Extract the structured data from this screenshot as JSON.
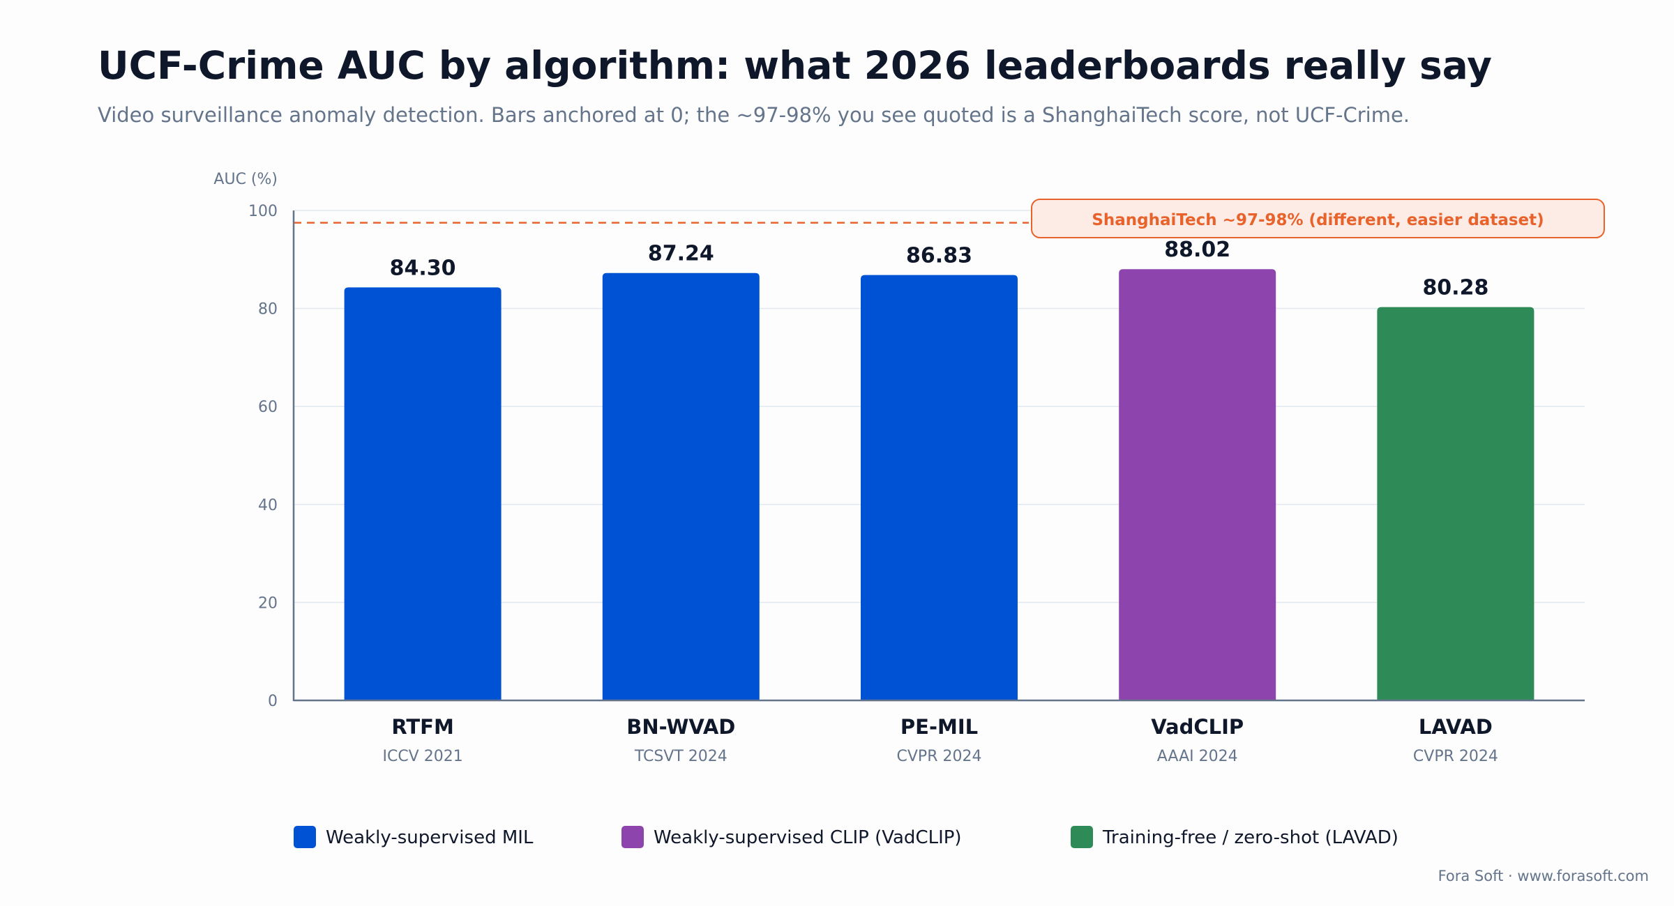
{
  "header": {
    "title": "UCF-Crime AUC by algorithm: what 2026 leaderboards really say",
    "subtitle": "Video surveillance anomaly detection. Bars anchored at 0; the ~97-98% you see quoted is a ShanghaiTech score, not UCF-Crime."
  },
  "footer": {
    "credit": "Fora Soft · www.forasoft.com"
  },
  "chart_data": {
    "type": "bar",
    "title": "UCF-Crime AUC by algorithm: what 2026 leaderboards really say",
    "ylabel": "AUC (%)",
    "xlabel": "",
    "ylim": [
      0,
      100
    ],
    "yticks": [
      0,
      20,
      40,
      60,
      80,
      100
    ],
    "grid": true,
    "legend_position": "bottom",
    "categories": [
      "RTFM",
      "BN-WVAD",
      "PE-MIL",
      "VadCLIP",
      "LAVAD"
    ],
    "venues": [
      "ICCV 2021",
      "TCSVT 2024",
      "CVPR 2024",
      "AAAI 2024",
      "CVPR 2024"
    ],
    "values": [
      84.3,
      87.24,
      86.83,
      88.02,
      80.28
    ],
    "value_labels": [
      "84.30",
      "87.24",
      "86.83",
      "88.02",
      "80.28"
    ],
    "groups": [
      "mil",
      "mil",
      "mil",
      "clip",
      "free"
    ],
    "legend": [
      {
        "key": "mil",
        "label": "Weakly-supervised MIL",
        "color": "#0052d4"
      },
      {
        "key": "clip",
        "label": "Weakly-supervised CLIP (VadCLIP)",
        "color": "#8e44ad"
      },
      {
        "key": "free",
        "label": "Training-free / zero-shot (LAVAD)",
        "color": "#2e8b57"
      }
    ],
    "reference_line": {
      "value": 97.5,
      "label": "ShanghaiTech ~97-98% (different, easier dataset)",
      "color": "#e8622c"
    },
    "colors": {
      "axis": "#64748b",
      "grid": "#e2e8f0",
      "text": "#0f172a",
      "muted": "#64748b",
      "annotation_fill": "#fdece6"
    }
  }
}
